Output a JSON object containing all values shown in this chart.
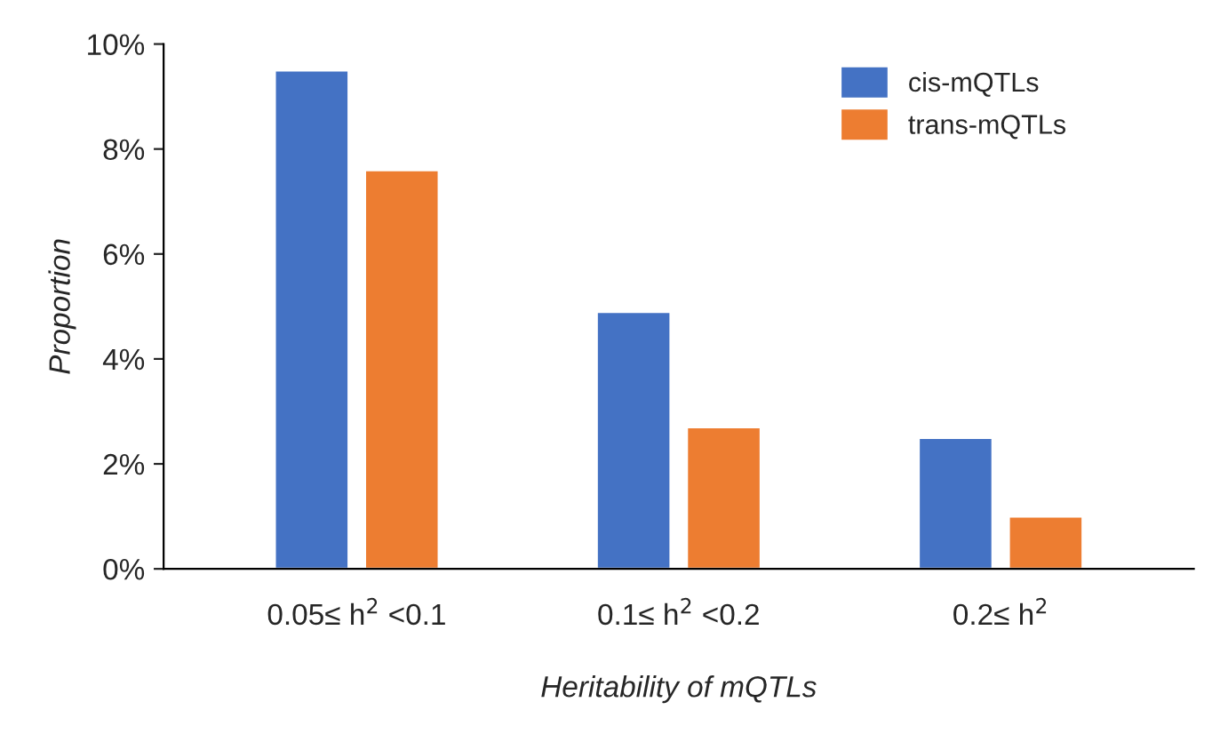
{
  "chart_data": {
    "type": "bar",
    "xlabel": "Heritability of mQTLs",
    "ylabel": "Proportion",
    "categories": [
      "0.05≤ h$^{2}$ <0.1",
      "0.1≤ h$^{2}$ <0.2",
      "0.2≤ h$^{2}$"
    ],
    "series": [
      {
        "name": "cis-mQTLs",
        "color": "#4472c4",
        "values": [
          9.5,
          4.9,
          2.5
        ]
      },
      {
        "name": "trans-mQTLs",
        "color": "#ed7d31",
        "values": [
          7.6,
          2.7,
          1.0
        ]
      }
    ],
    "ylim": [
      0,
      10
    ],
    "yticks": [
      {
        "value": 0,
        "label": "0%"
      },
      {
        "value": 2,
        "label": "2%"
      },
      {
        "value": 4,
        "label": "4%"
      },
      {
        "value": 6,
        "label": "6%"
      },
      {
        "value": 8,
        "label": "8%"
      },
      {
        "value": 10,
        "label": "10%"
      }
    ],
    "grid": false,
    "legend": "top right"
  }
}
